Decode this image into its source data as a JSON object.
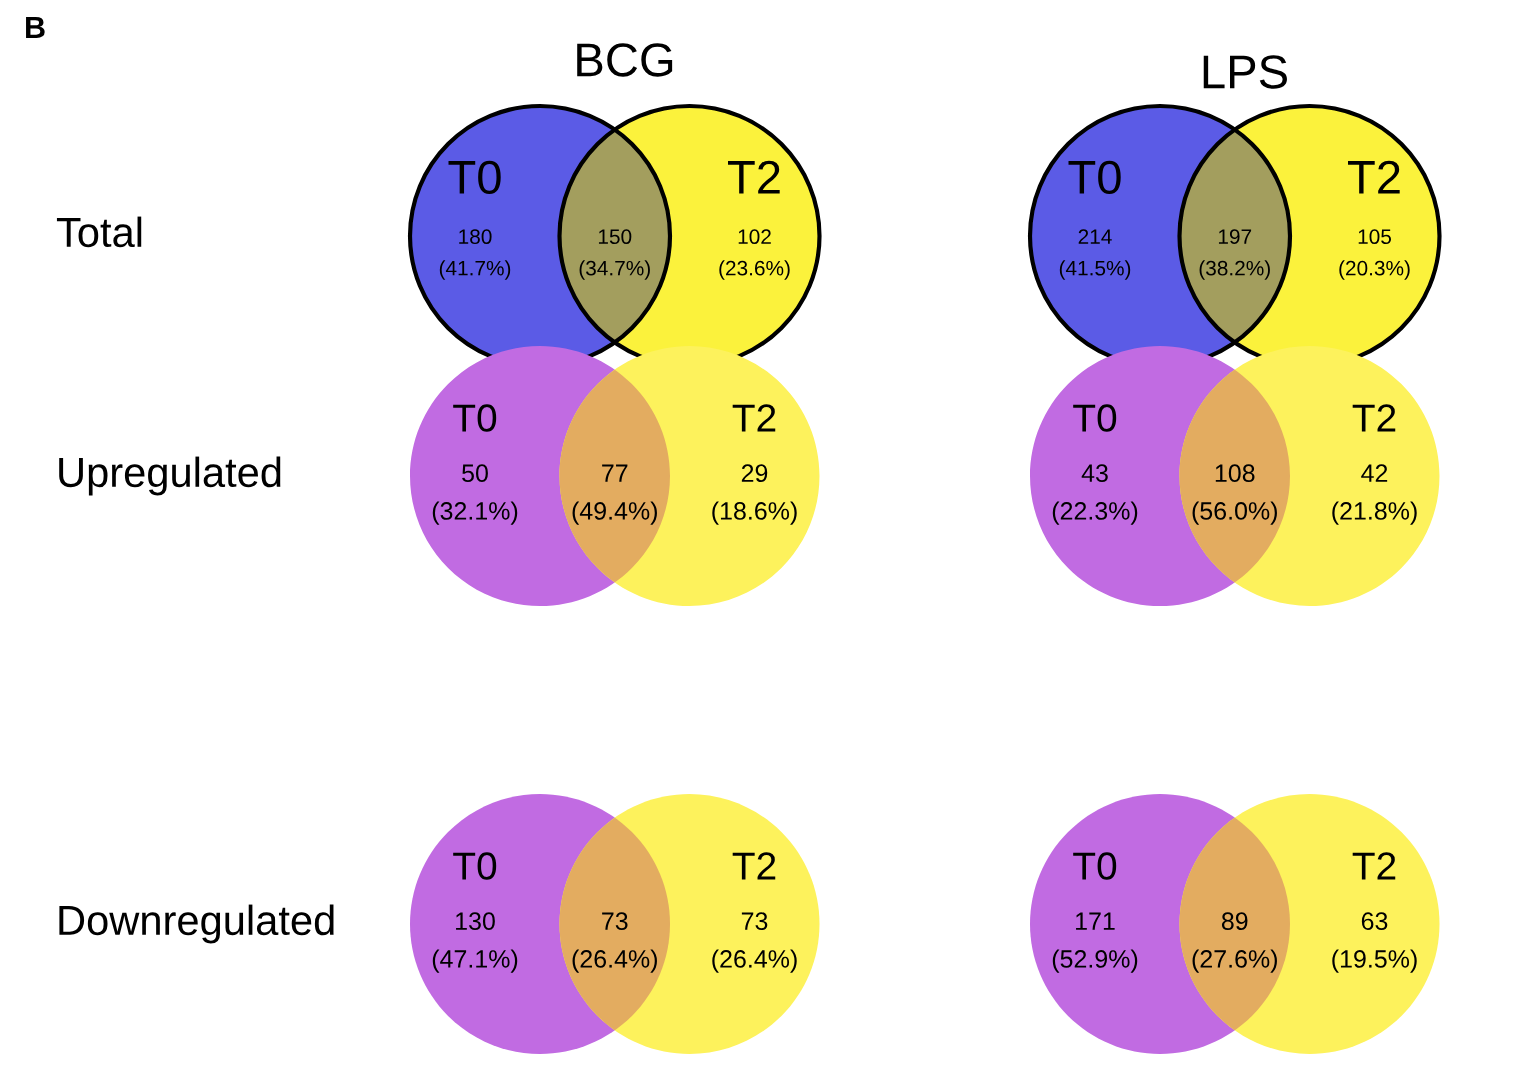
{
  "chart_data": [
    {
      "type": "other",
      "title": "BCG",
      "ylabel": "Total",
      "annotations": [
        "B"
      ],
      "categories": [
        "T0",
        null,
        "T2"
      ],
      "values": [
        180,
        150,
        102
      ],
      "value_labels": [
        "180\n(41.7%)",
        "150\n(34.7%)",
        "102\n(23.6%)"
      ],
      "colors": [
        "#5b5be6",
        "#a39e5e",
        "#fbf23c"
      ]
    },
    {
      "type": "other",
      "title": "LPS",
      "categories": [
        "T0",
        null,
        "T2"
      ],
      "values": [
        214,
        197,
        105
      ],
      "value_labels": [
        "214\n(41.5%)",
        "197\n(38.2%)",
        "105\n(20.3%)"
      ],
      "colors": [
        "#5b5be6",
        "#a39e5e",
        "#fbf23c"
      ]
    },
    {
      "type": "other",
      "ylabel": "Upregulated",
      "categories": [
        "T0",
        null,
        "T2"
      ],
      "values": [
        50,
        77,
        29
      ],
      "value_labels": [
        "50\n(32.1%)",
        "77\n(49.4%)",
        "29\n(18.6%)"
      ],
      "colors": [
        "#c16be2",
        "#e3ac60",
        "#fdf25c"
      ]
    },
    {
      "type": "other",
      "categories": [
        "T0",
        null,
        "T2"
      ],
      "values": [
        43,
        108,
        42
      ],
      "value_labels": [
        "43\n(22.3%)",
        "108\n(56.0%)",
        "42\n(21.8%)"
      ],
      "colors": [
        "#c16be2",
        "#e3ac60",
        "#fdf25c"
      ]
    },
    {
      "type": "other",
      "ylabel": "Downregulated",
      "categories": [
        "T0",
        null,
        "T2"
      ],
      "values": [
        130,
        73,
        73
      ],
      "value_labels": [
        "130\n(47.1%)",
        "73\n(26.4%)",
        "73\n(26.4%)"
      ],
      "colors": [
        "#c16be2",
        "#e3ac60",
        "#fdf25c"
      ]
    },
    {
      "type": "other",
      "categories": [
        "T0",
        null,
        "T2"
      ],
      "values": [
        171,
        89,
        63
      ],
      "value_labels": [
        "171\n(52.9%)",
        "89\n(27.6%)",
        "63\n(19.5%)"
      ],
      "colors": [
        "#c16be2",
        "#e3ac60",
        "#fdf25c"
      ]
    }
  ]
}
